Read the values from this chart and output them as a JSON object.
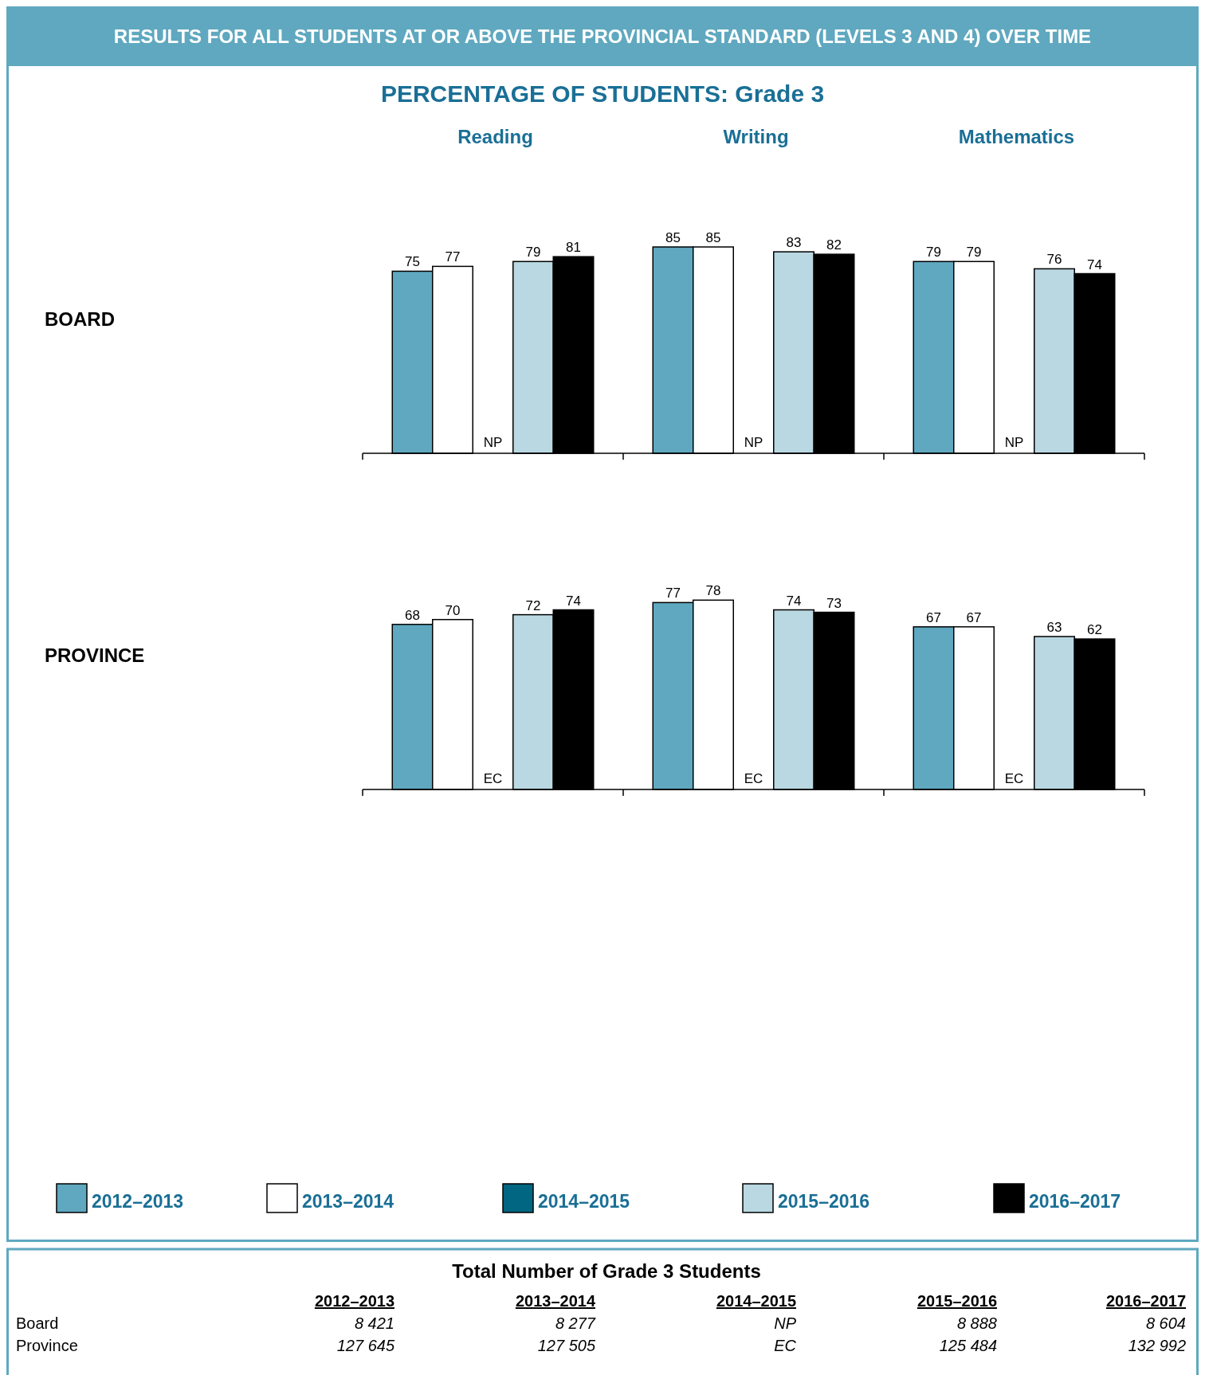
{
  "chart_data": [
    {
      "type": "bar",
      "title": "RESULTS FOR ALL STUDENTS AT OR ABOVE THE PROVINCIAL STANDARD (LEVELS 3 AND 4) OVER TIME",
      "subtitle": "PERCENTAGE OF STUDENTS: Grade 3",
      "ylabel": "BOARD",
      "categories": [
        "Reading",
        "Writing",
        "Mathematics"
      ],
      "data_labels": true,
      "legend": "bottom",
      "series": [
        {
          "name": "2012–2013",
          "color": "#5fa8c0",
          "values": [
            75,
            85,
            79
          ]
        },
        {
          "name": "2013–2014",
          "color": "#ffffff",
          "values": [
            77,
            85,
            79
          ]
        },
        {
          "name": "2014–2015",
          "color": "#006682",
          "values": [
            null,
            null,
            null
          ],
          "value_labels": [
            "NP",
            "NP",
            "NP"
          ]
        },
        {
          "name": "2015–2016",
          "color": "#b9d8e2",
          "values": [
            79,
            83,
            76
          ]
        },
        {
          "name": "2016–2017",
          "color": "#000000",
          "values": [
            81,
            82,
            74
          ]
        }
      ]
    },
    {
      "type": "bar",
      "ylabel": "PROVINCE",
      "categories": [
        null,
        null,
        null
      ],
      "data_labels": true,
      "series": [
        {
          "color": "#5fa8c0",
          "values": [
            68,
            77,
            67
          ]
        },
        {
          "color": "#ffffff",
          "values": [
            70,
            78,
            67
          ]
        },
        {
          "values": [
            null,
            null,
            null
          ],
          "value_labels": [
            "EC",
            "EC",
            "EC"
          ]
        },
        {
          "color": "#b9d8e2",
          "values": [
            72,
            74,
            63
          ]
        },
        {
          "color": "#000000",
          "values": [
            74,
            73,
            62
          ]
        }
      ]
    },
    {
      "type": "other",
      "title": "Total Number of Grade 3 Students",
      "categories": [
        "2012–2013",
        "2013–2014",
        "2014–2015",
        "2015–2016",
        "2016–2017"
      ],
      "y_categories": [
        "Board",
        "Province"
      ],
      "cell_labels": [
        [
          "8 421",
          "8 277",
          "NP",
          "8 888",
          "8 604"
        ],
        [
          "127 645",
          "127 505",
          "EC",
          "125 484",
          "132 992"
        ]
      ]
    }
  ]
}
